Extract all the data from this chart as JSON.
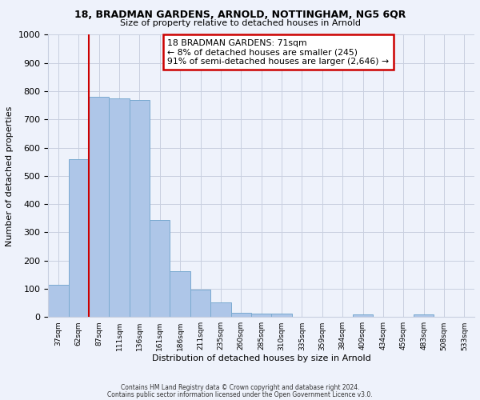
{
  "title": "18, BRADMAN GARDENS, ARNOLD, NOTTINGHAM, NG5 6QR",
  "subtitle": "Size of property relative to detached houses in Arnold",
  "xlabel": "Distribution of detached houses by size in Arnold",
  "ylabel": "Number of detached properties",
  "categories": [
    "37sqm",
    "62sqm",
    "87sqm",
    "111sqm",
    "136sqm",
    "161sqm",
    "186sqm",
    "211sqm",
    "235sqm",
    "260sqm",
    "285sqm",
    "310sqm",
    "335sqm",
    "359sqm",
    "384sqm",
    "409sqm",
    "434sqm",
    "459sqm",
    "483sqm",
    "508sqm",
    "533sqm"
  ],
  "bar_values": [
    115,
    560,
    780,
    775,
    770,
    345,
    162,
    98,
    52,
    14,
    13,
    12,
    0,
    0,
    0,
    10,
    0,
    0,
    10,
    0,
    0
  ],
  "bar_color": "#aec6e8",
  "bar_edge_color": "#7aaad0",
  "ylim": [
    0,
    1000
  ],
  "yticks": [
    0,
    100,
    200,
    300,
    400,
    500,
    600,
    700,
    800,
    900,
    1000
  ],
  "vline_x": 1.5,
  "vline_color": "#cc0000",
  "annotation_lines": [
    "18 BRADMAN GARDENS: 71sqm",
    "← 8% of detached houses are smaller (245)",
    "91% of semi-detached houses are larger (2,646) →"
  ],
  "annotation_box_color": "#cc0000",
  "background_color": "#eef2fb",
  "grid_color": "#c8cfe0",
  "footer_line1": "Contains HM Land Registry data © Crown copyright and database right 2024.",
  "footer_line2": "Contains public sector information licensed under the Open Government Licence v3.0."
}
